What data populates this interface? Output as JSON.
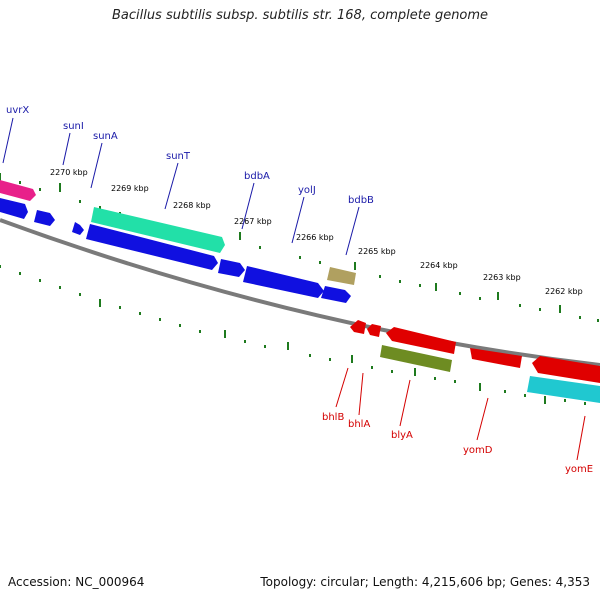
{
  "title": "Bacillus subtilis subsp. subtilis str. 168, complete genome",
  "footer": {
    "accession": "Accession: NC_000964",
    "stats": "Topology: circular; Length: 4,215,606 bp; Genes: 4,353"
  },
  "colors": {
    "backbone": "#7a7a7a",
    "tick": "#1e7a1e",
    "label_top": "#1a1aa8",
    "label_bottom": "#d40000",
    "gene_blue": "#1010e0",
    "gene_red": "#e00000",
    "gene_pink": "#e8208a",
    "gene_teal": "#22e0a8",
    "gene_olive": "#6e8c22",
    "gene_khaki": "#b0a060",
    "gene_cyan": "#20c8d0"
  },
  "scale_labels": [
    "2270 kbp",
    "2269 kbp",
    "2268 kbp",
    "2267 kbp",
    "2266 kbp",
    "2265 kbp",
    "2264 kbp",
    "2263 kbp",
    "2262 kbp"
  ],
  "genes_top": [
    "uvrX",
    "sunI",
    "sunA",
    "sunT",
    "bdbA",
    "yolJ",
    "bdbB"
  ],
  "genes_bottom": [
    "bhlB",
    "bhlA",
    "blyA",
    "yomD",
    "yomE"
  ]
}
